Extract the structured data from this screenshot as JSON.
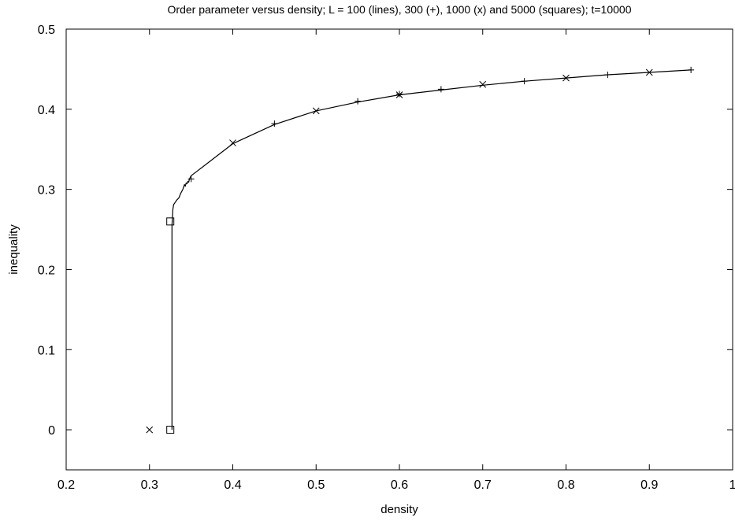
{
  "chart_data": {
    "type": "line",
    "title": "Order parameter versus density; L = 100 (lines), 300 (+), 1000 (x) and 5000 (squares); t=10000",
    "xlabel": "density",
    "ylabel": "inequality",
    "xlim": [
      0.2,
      1.0
    ],
    "ylim": [
      -0.05,
      0.5
    ],
    "grid": false,
    "xticks": [
      0.2,
      0.3,
      0.4,
      0.5,
      0.6,
      0.7,
      0.8,
      0.9,
      1.0
    ],
    "xtick_labels": [
      "0.2",
      "0.3",
      "0.4",
      "0.5",
      "0.6",
      "0.7",
      "0.8",
      "0.9",
      "1"
    ],
    "yticks": [
      0,
      0.1,
      0.2,
      0.3,
      0.4,
      0.5
    ],
    "ytick_labels": [
      "0",
      "0.1",
      "0.2",
      "0.3",
      "0.4",
      "0.5"
    ],
    "colors": {
      "ink": "#000000",
      "background": "#ffffff"
    },
    "series": [
      {
        "key": "L100",
        "style": "line",
        "x": [
          0.327,
          0.327,
          0.328,
          0.329,
          0.331,
          0.333,
          0.335,
          0.336,
          0.337,
          0.338,
          0.339,
          0.34,
          0.341,
          0.342,
          0.343,
          0.344,
          0.345,
          0.346,
          0.347,
          0.348,
          0.35,
          0.36,
          0.38,
          0.4,
          0.45,
          0.5,
          0.55,
          0.6,
          0.65,
          0.7,
          0.75,
          0.8,
          0.85,
          0.9,
          0.95
        ],
        "y": [
          0.0,
          0.255,
          0.275,
          0.281,
          0.284,
          0.287,
          0.289,
          0.291,
          0.294,
          0.296,
          0.298,
          0.3,
          0.303,
          0.306,
          0.304,
          0.308,
          0.307,
          0.31,
          0.309,
          0.313,
          0.317,
          0.325,
          0.341,
          0.357,
          0.381,
          0.398,
          0.409,
          0.418,
          0.424,
          0.43,
          0.435,
          0.439,
          0.443,
          0.446,
          0.449
        ]
      },
      {
        "key": "L300",
        "style": "plus",
        "x": [
          0.35,
          0.45,
          0.55,
          0.6,
          0.65,
          0.75,
          0.85,
          0.95
        ],
        "y": [
          0.313,
          0.382,
          0.41,
          0.419,
          0.425,
          0.435,
          0.443,
          0.449
        ]
      },
      {
        "key": "L1000",
        "style": "cross",
        "x": [
          0.3,
          0.4,
          0.5,
          0.6,
          0.7,
          0.8,
          0.9
        ],
        "y": [
          0.0,
          0.358,
          0.398,
          0.418,
          0.431,
          0.439,
          0.446
        ]
      },
      {
        "key": "L5000",
        "style": "square",
        "x": [
          0.325,
          0.325
        ],
        "y": [
          0.0,
          0.26
        ]
      }
    ]
  }
}
